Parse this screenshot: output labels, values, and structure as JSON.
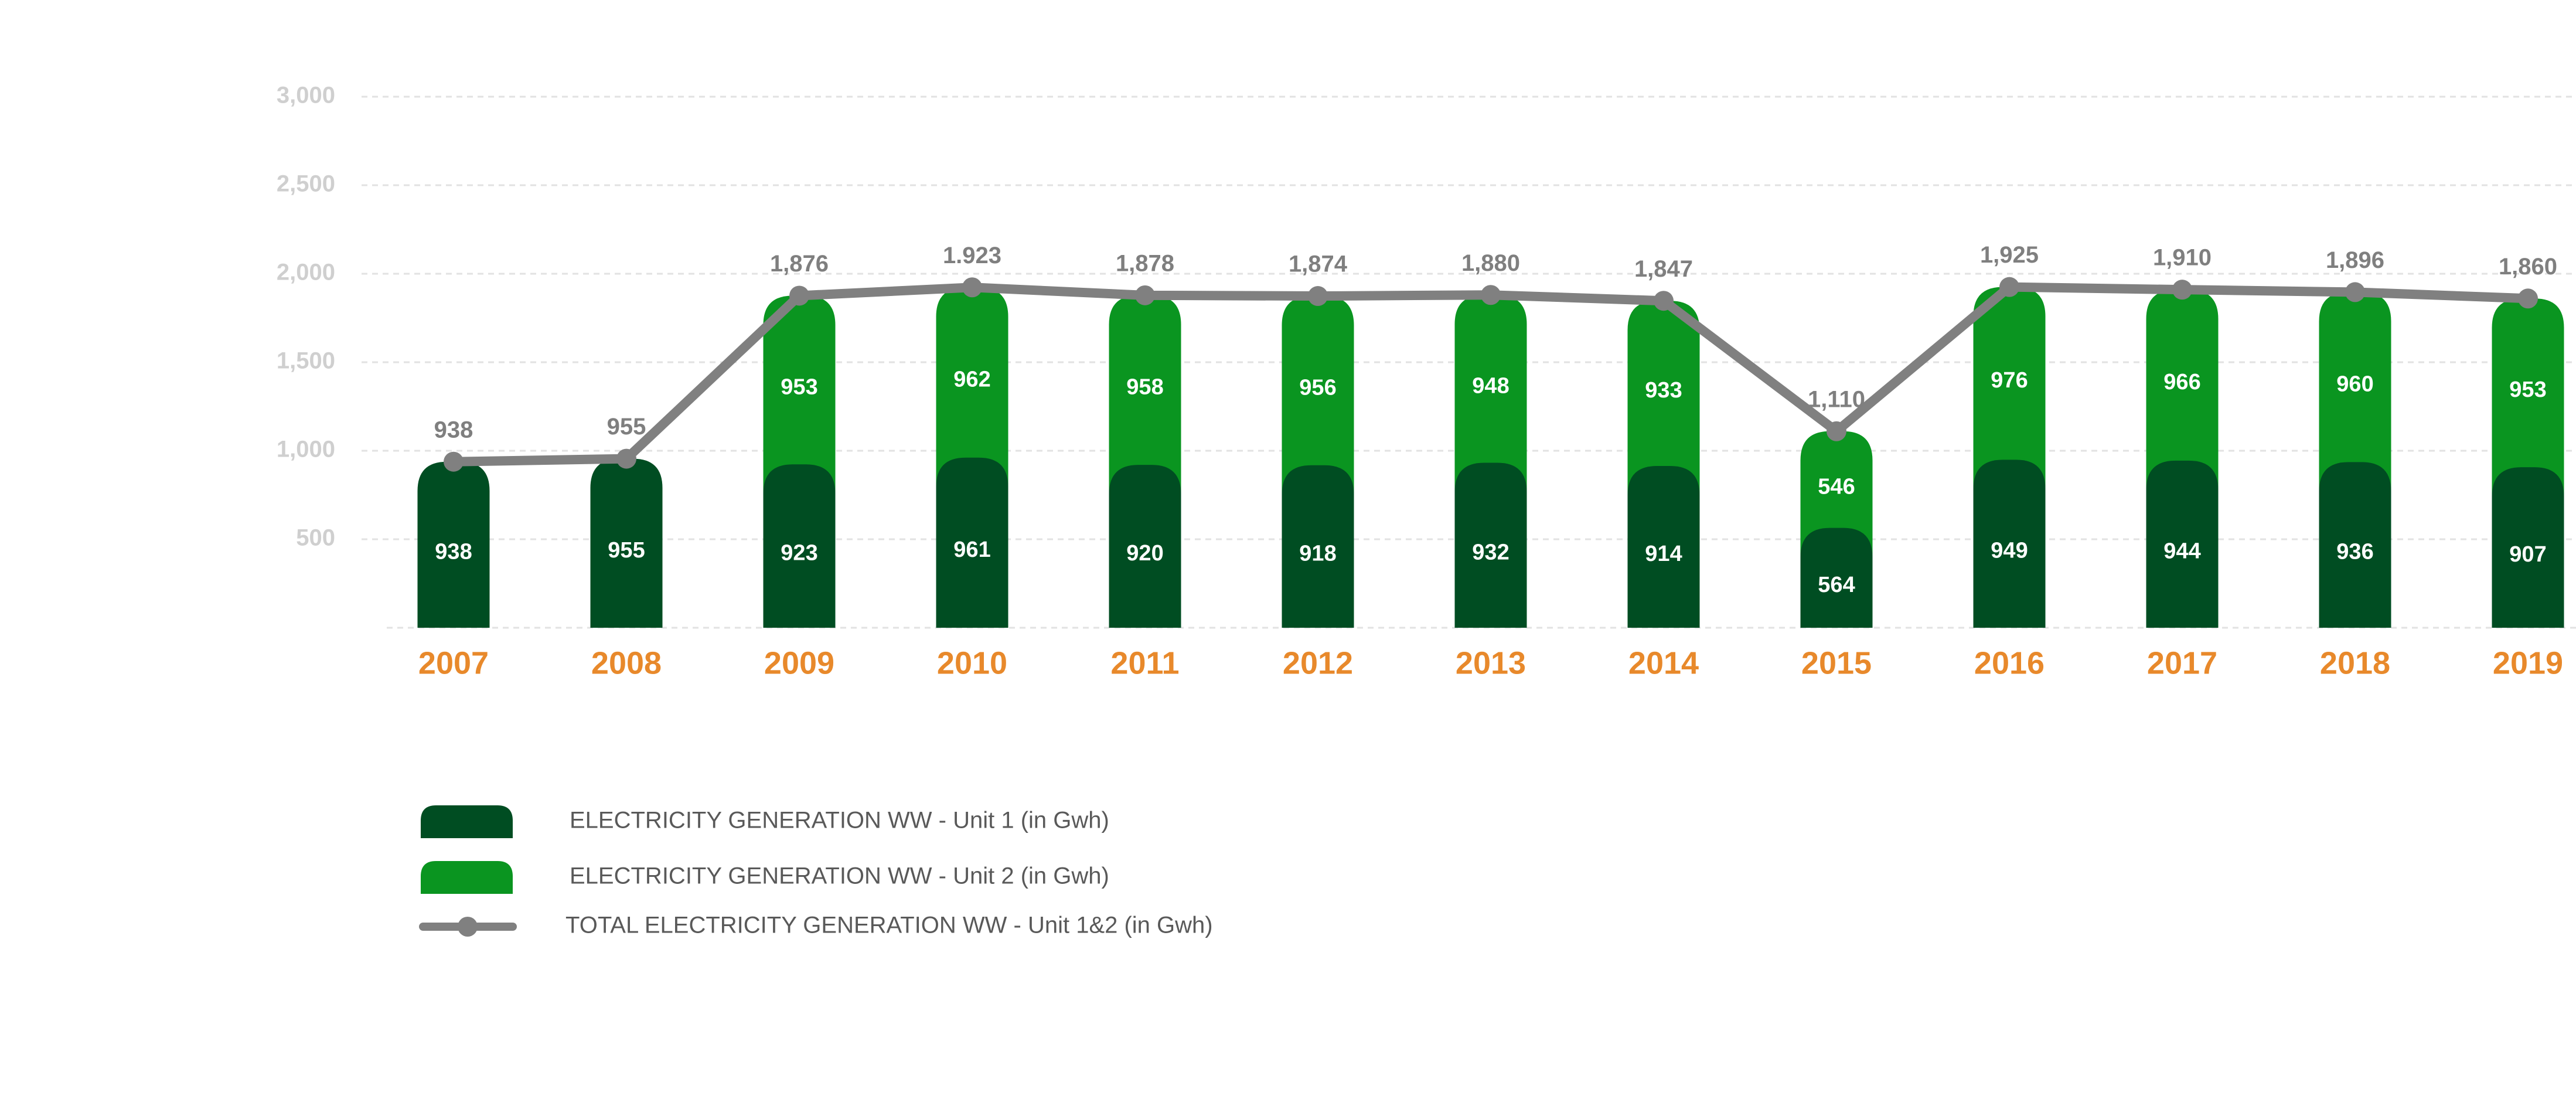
{
  "chart_data": {
    "type": "bar",
    "categories": [
      "2007",
      "2008",
      "2009",
      "2010",
      "2011",
      "2012",
      "2013",
      "2014",
      "2015",
      "2016",
      "2017",
      "2018",
      "2019"
    ],
    "series": [
      {
        "name": "ELECTRICITY GENERATION WW - Unit 1 (in Gwh)",
        "color": "#004d22",
        "values": [
          938,
          955,
          923,
          961,
          920,
          918,
          932,
          914,
          564,
          949,
          944,
          936,
          907
        ]
      },
      {
        "name": "ELECTRICITY GENERATION WW - Unit 2 (in Gwh)",
        "color": "#0a9520",
        "values": [
          null,
          null,
          953,
          962,
          958,
          956,
          948,
          933,
          546,
          976,
          966,
          960,
          953
        ]
      },
      {
        "name": "TOTAL ELECTRICITY GENERATION WW - Unit 1&2 (in Gwh)",
        "color": "#808080",
        "type": "line",
        "values": [
          938,
          955,
          1876,
          1923,
          1878,
          1874,
          1880,
          1847,
          1110,
          1925,
          1910,
          1896,
          1860
        ],
        "value_labels": [
          "938",
          "955",
          "1,876",
          "1.923",
          "1,878",
          "1,874",
          "1,880",
          "1,847",
          "1,110",
          "1,925",
          "1,910",
          "1,896",
          "1,860"
        ]
      }
    ],
    "ylim": [
      0,
      3000
    ],
    "yticks": [
      500,
      {
        "value": 1000,
        "label": "1,000"
      },
      {
        "value": 1500,
        "label": "1,500"
      },
      {
        "value": 2000,
        "label": "2,000"
      },
      {
        "value": 2500,
        "label": "2,500"
      },
      {
        "value": 3000,
        "label": "3,000"
      }
    ],
    "grid": true,
    "legend": "bottom-left"
  }
}
